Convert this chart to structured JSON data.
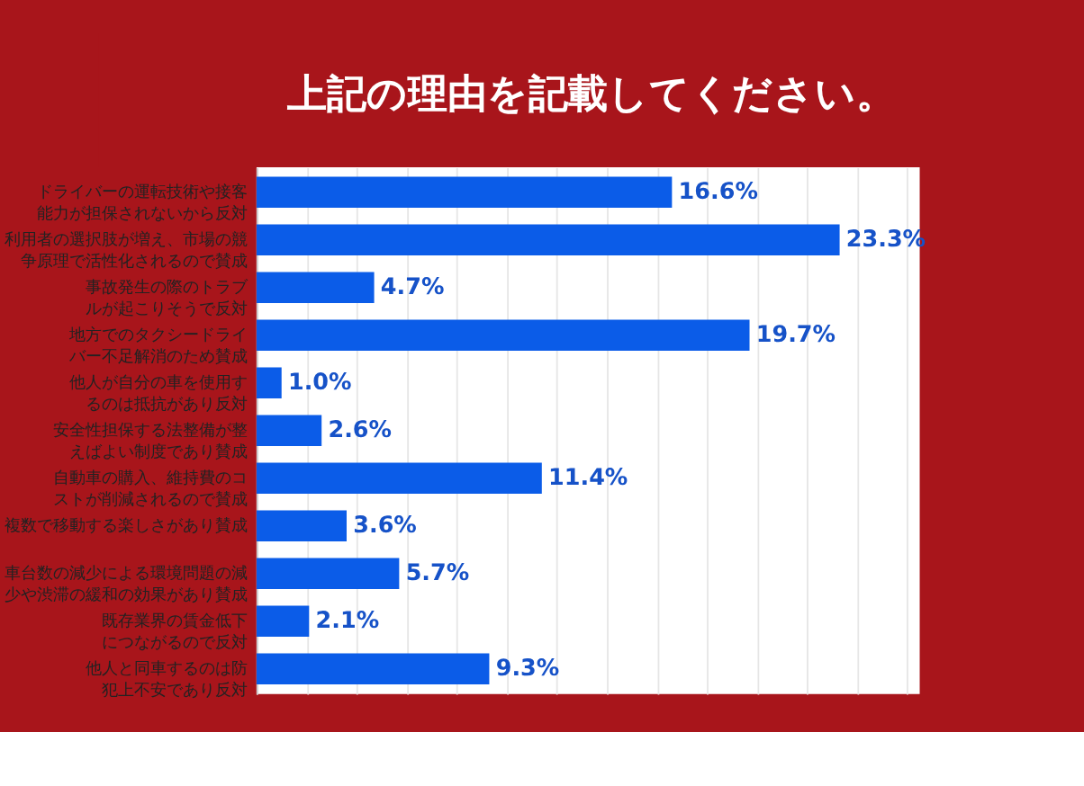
{
  "chart_data": {
    "type": "bar",
    "orientation": "horizontal",
    "title": "上記の理由を記載してください。",
    "categories": [
      "ドライバーの運転技術や接客能力が担保されないから反対",
      "利用者の選択肢が増え、市場の競争原理で活性化されるので賛成",
      "事故発生の際のトラブルが起こりそうで反対",
      "地方でのタクシードライバー不足解消のため賛成",
      "他人が自分の車を使用するのは抵抗があり反対",
      "安全性担保する法整備が整えばよい制度であり賛成",
      "自動車の購入、維持費のコストが削減されるので賛成",
      "複数で移動する楽しさがあり賛成",
      "車台数の減少による環境問題の減少や渋滞の緩和の効果があり賛成",
      "既存業界の賃金低下につながるので反対",
      "他人と同車するのは防犯上不安であり反対"
    ],
    "values": [
      16.6,
      23.3,
      4.7,
      19.7,
      1.0,
      2.6,
      11.4,
      3.6,
      5.7,
      2.1,
      9.3
    ],
    "value_labels": [
      "16.6%",
      "23.3%",
      "4.7%",
      "19.7%",
      "1.0%",
      "2.6%",
      "11.4%",
      "3.6%",
      "5.7%",
      "2.1%",
      "9.3%"
    ],
    "color": "#0b5ce8",
    "xlim": [
      0,
      26.5
    ],
    "tick_labels": "y",
    "grid": "x"
  }
}
